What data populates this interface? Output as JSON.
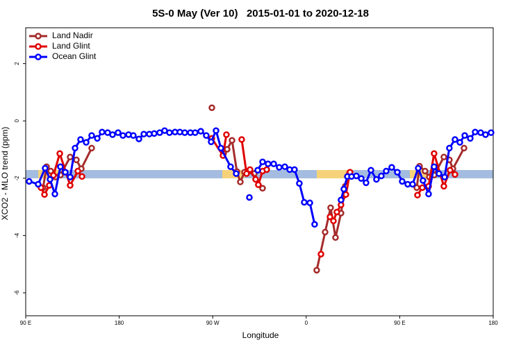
{
  "chart_data": {
    "type": "line",
    "title": "5S-0 May (Ver 10)   2015-01-01 to 2020-12-18",
    "x_label": "Longitude",
    "y_label": "XCO2 - MLO trend (ppm)",
    "xlim": [
      90,
      540
    ],
    "ylim": [
      -6.8,
      3.25
    ],
    "xticks": [
      {
        "value": 90,
        "label": "90 E"
      },
      180,
      {
        "value": 270,
        "label": "90 W"
      },
      {
        "value": 360,
        "label": "0"
      },
      {
        "value": 450,
        "label": "90 E"
      },
      {
        "value": 540,
        "label": "180"
      }
    ],
    "yticks": [
      -6,
      -4,
      -2,
      0,
      2
    ],
    "legend": "top-left",
    "series": [
      {
        "name": "Land Nadir",
        "color": "#a52a2a",
        "x": [
          106.7,
          110.1,
          114.1,
          118.7,
          123.4,
          132.8,
          138.8,
          143.5,
          153.5,
          null,
          269.2,
          null,
          280.5,
          283.9,
          288.6,
          293.3,
          296.6,
          300.6,
          310.0,
          318.0,
          null,
          370.1,
          378.2,
          383.5,
          388.2,
          393.5,
          397.6,
          401.6,
          null,
          466.4,
          469.1,
          474.4,
          478.5,
          483.1,
          492.5,
          497.8,
          501.2,
          511.9
        ],
        "values": [
          -2.33,
          -1.6,
          -1.75,
          -1.96,
          -1.89,
          -1.26,
          -1.36,
          -1.67,
          -0.95,
          null,
          0.46,
          null,
          -1.12,
          -0.99,
          -0.68,
          -1.77,
          -2.13,
          -1.79,
          -1.84,
          -2.35,
          null,
          -5.21,
          -3.88,
          -3.03,
          -4.07,
          -3.22,
          -2.28,
          -1.82,
          null,
          -2.33,
          -1.58,
          -1.75,
          -1.96,
          -1.89,
          -1.26,
          -1.36,
          -1.67,
          -0.95
        ]
      },
      {
        "name": "Land Glint",
        "color": "#e00000",
        "x": [
          104.7,
          108.1,
          112.7,
          116.7,
          122.8,
          132.8,
          140.2,
          144.2,
          null,
          269.2,
          279.9,
          283.2,
          null,
          297.9,
          302.6,
          305.9,
          311.3,
          313.9,
          318.0,
          322.0,
          null,
          374.2,
          null,
          382.9,
          386.2,
          389.5,
          393.5,
          398.2,
          402.2,
          null,
          467.1,
          471.8,
          477.8,
          483.1,
          492.5,
          498.5,
          503.2
        ],
        "values": [
          -2.33,
          -2.57,
          -2.25,
          -1.9,
          -1.14,
          -2.25,
          -1.75,
          -1.94,
          null,
          -0.61,
          -1.21,
          -0.48,
          null,
          -0.65,
          -1.84,
          -1.7,
          -2.04,
          -2.23,
          -1.75,
          -1.7,
          null,
          -4.65,
          null,
          -3.35,
          -3.49,
          -3.18,
          -2.93,
          -2.57,
          -1.79,
          null,
          -2.59,
          -2.33,
          -2.28,
          -1.14,
          -2.28,
          -1.72,
          -1.87
        ]
      },
      {
        "name": "Ocean Glint",
        "color": "#0000ff",
        "x": [
          93.3,
          102.0,
          108.7,
          113.4,
          118.1,
          123.4,
          128.1,
          132.8,
          137.5,
          142.8,
          148.2,
          153.5,
          158.9,
          163.5,
          168.9,
          173.6,
          178.9,
          183.6,
          189.0,
          193.6,
          199.0,
          203.7,
          209.0,
          213.7,
          219.0,
          223.7,
          228.4,
          233.7,
          238.4,
          243.1,
          248.5,
          253.1,
          258.5,
          263.8,
          268.5,
          273.2,
          277.9,
          287.2,
          292.6,
          null,
          305.3,
          null,
          313.3,
          318.0,
          323.3,
          328.7,
          334.0,
          339.4,
          344.1,
          348.7,
          353.4,
          358.1,
          363.5,
          368.1,
          null,
          393.5,
          396.2,
          399.6,
          403.6,
          408.3,
          413.0,
          417.6,
          422.3,
          427.6,
          432.3,
          437.0,
          442.3,
          447.7,
          452.4,
          457.7,
          462.4,
          467.8,
          472.4,
          477.8,
          483.1,
          487.8,
          493.2,
          497.8,
          503.2,
          507.9,
          512.6,
          517.9,
          522.6,
          527.9,
          532.6,
          537.9
        ],
        "values": [
          -2.11,
          -2.21,
          -1.65,
          -2.04,
          -2.55,
          -1.6,
          -1.79,
          -1.96,
          -0.95,
          -0.65,
          -0.75,
          -0.51,
          -0.61,
          -0.39,
          -0.41,
          -0.48,
          -0.41,
          -0.51,
          -0.48,
          -0.51,
          -0.63,
          -0.46,
          -0.46,
          -0.44,
          -0.41,
          -0.34,
          -0.41,
          -0.39,
          -0.39,
          -0.41,
          -0.41,
          -0.41,
          -0.36,
          -0.51,
          -0.73,
          -0.34,
          -0.95,
          -1.6,
          -1.84,
          null,
          -2.67,
          null,
          -1.72,
          -1.43,
          -1.5,
          -1.5,
          -1.62,
          -1.6,
          -1.7,
          -1.7,
          -2.18,
          -2.84,
          -2.86,
          -3.61,
          null,
          -2.76,
          -2.38,
          -1.94,
          -1.94,
          -1.92,
          -2.01,
          -2.16,
          -1.72,
          -2.04,
          -1.92,
          -1.75,
          -1.62,
          -1.79,
          -2.11,
          -2.21,
          -2.21,
          -1.65,
          -2.08,
          -2.55,
          -1.6,
          -1.84,
          -1.96,
          -0.95,
          -0.65,
          -0.75,
          -0.51,
          -0.61,
          -0.39,
          -0.41,
          -0.48,
          -0.41
        ]
      }
    ]
  }
}
